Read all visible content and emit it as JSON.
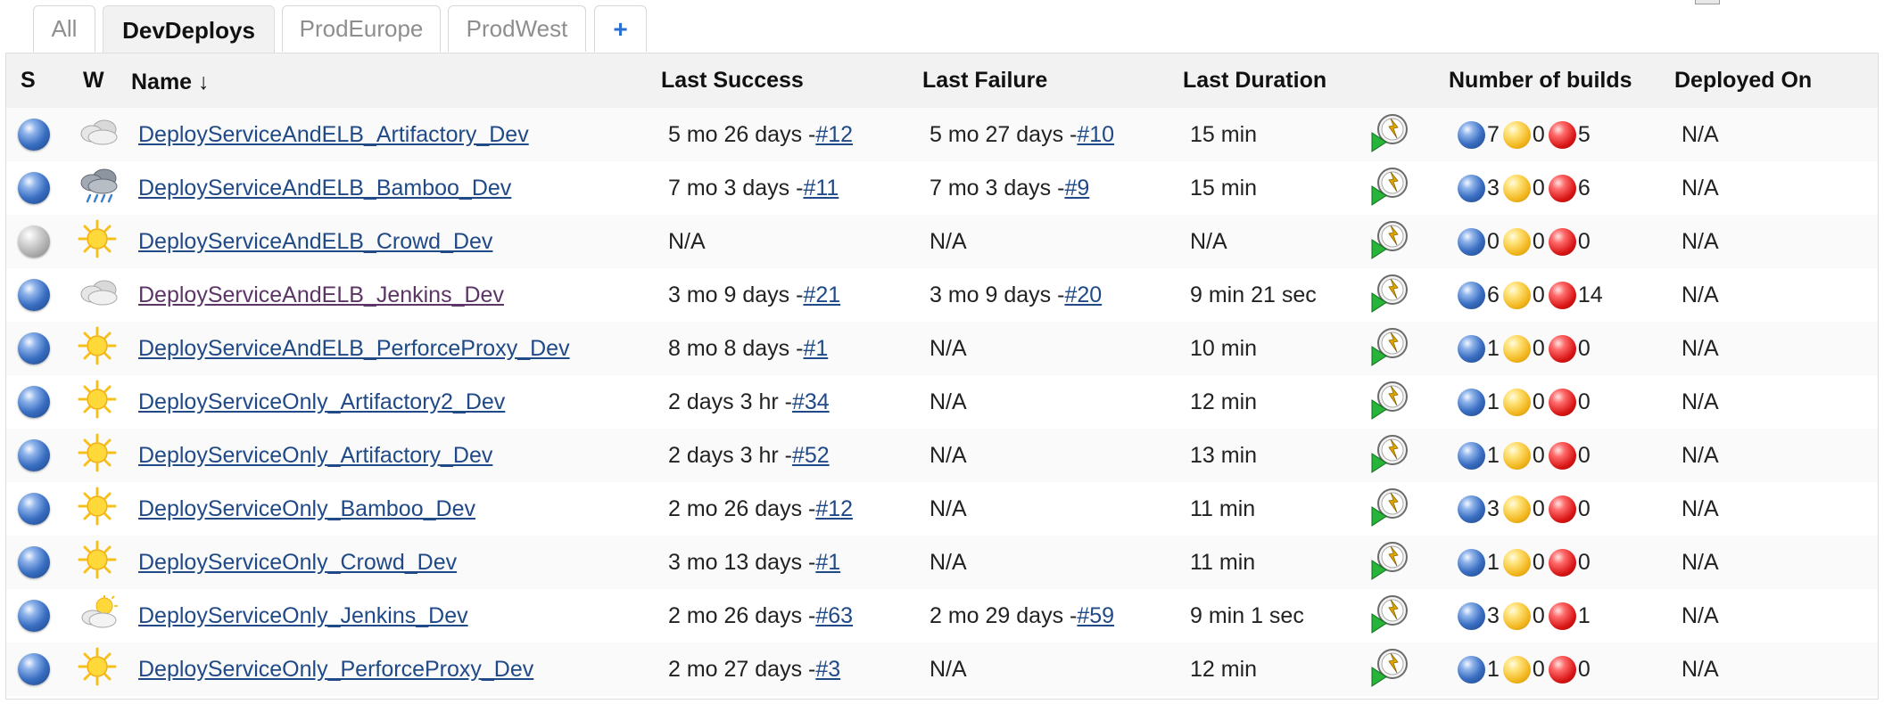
{
  "tabs": [
    {
      "label": "All"
    },
    {
      "label": "DevDeploys",
      "active": true
    },
    {
      "label": "ProdEurope"
    },
    {
      "label": "ProdWest"
    },
    {
      "label": "+"
    }
  ],
  "table": {
    "headers": {
      "s": "S",
      "w": "W",
      "name": "Name ↓",
      "last_success": "Last Success",
      "last_failure": "Last Failure",
      "last_duration": "Last Duration",
      "builds": "Number of builds",
      "deployed": "Deployed On"
    },
    "rows": [
      {
        "status": "blue-ball",
        "weather": "cloudy-icon",
        "name": "DeployServiceAndELB_Artifactory_Dev",
        "ls_text": "5 mo 26 days - ",
        "ls_build": "#12",
        "lf_text": "5 mo 27 days - ",
        "lf_build": "#10",
        "duration": "15 min",
        "success": "7",
        "unstable": "0",
        "failed": "5",
        "deployed": "N/A"
      },
      {
        "status": "blue-ball",
        "weather": "rain-icon",
        "name": "DeployServiceAndELB_Bamboo_Dev",
        "ls_text": "7 mo 3 days - ",
        "ls_build": "#11",
        "lf_text": "7 mo 3 days - ",
        "lf_build": "#9",
        "duration": "15 min",
        "success": "3",
        "unstable": "0",
        "failed": "6",
        "deployed": "N/A"
      },
      {
        "status": "grey-ball",
        "weather": "sun-icon",
        "name": "DeployServiceAndELB_Crowd_Dev",
        "ls_text": "N/A",
        "ls_build": "",
        "lf_text": "N/A",
        "lf_build": "",
        "duration": "N/A",
        "success": "0",
        "unstable": "0",
        "failed": "0",
        "deployed": "N/A"
      },
      {
        "status": "blue-ball",
        "weather": "cloudy-icon",
        "name": "DeployServiceAndELB_Jenkins_Dev",
        "visited": true,
        "ls_text": "3 mo 9 days - ",
        "ls_build": "#21",
        "lf_text": "3 mo 9 days - ",
        "lf_build": "#20",
        "duration": "9 min 21 sec",
        "success": "6",
        "unstable": "0",
        "failed": "14",
        "deployed": "N/A"
      },
      {
        "status": "blue-ball",
        "weather": "sun-icon",
        "name": "DeployServiceAndELB_PerforceProxy_Dev",
        "ls_text": "8 mo 8 days - ",
        "ls_build": "#1",
        "lf_text": "N/A",
        "lf_build": "",
        "duration": "10 min",
        "success": "1",
        "unstable": "0",
        "failed": "0",
        "deployed": "N/A"
      },
      {
        "status": "blue-ball",
        "weather": "sun-icon",
        "name": "DeployServiceOnly_Artifactory2_Dev",
        "ls_text": "2 days 3 hr - ",
        "ls_build": "#34",
        "lf_text": "N/A",
        "lf_build": "",
        "duration": "12 min",
        "success": "1",
        "unstable": "0",
        "failed": "0",
        "deployed": "N/A"
      },
      {
        "status": "blue-ball",
        "weather": "sun-icon",
        "name": "DeployServiceOnly_Artifactory_Dev",
        "ls_text": "2 days 3 hr - ",
        "ls_build": "#52",
        "lf_text": "N/A",
        "lf_build": "",
        "duration": "13 min",
        "success": "1",
        "unstable": "0",
        "failed": "0",
        "deployed": "N/A"
      },
      {
        "status": "blue-ball",
        "weather": "sun-icon",
        "name": "DeployServiceOnly_Bamboo_Dev",
        "ls_text": "2 mo 26 days - ",
        "ls_build": "#12",
        "lf_text": "N/A",
        "lf_build": "",
        "duration": "11 min",
        "success": "3",
        "unstable": "0",
        "failed": "0",
        "deployed": "N/A"
      },
      {
        "status": "blue-ball",
        "weather": "sun-icon",
        "name": "DeployServiceOnly_Crowd_Dev",
        "ls_text": "3 mo 13 days - ",
        "ls_build": "#1",
        "lf_text": "N/A",
        "lf_build": "",
        "duration": "11 min",
        "success": "1",
        "unstable": "0",
        "failed": "0",
        "deployed": "N/A"
      },
      {
        "status": "blue-ball",
        "weather": "partly-sunny-icon",
        "name": "DeployServiceOnly_Jenkins_Dev",
        "ls_text": "2 mo 26 days - ",
        "ls_build": "#63",
        "lf_text": "2 mo 29 days - ",
        "lf_build": "#59",
        "duration": "9 min 1 sec",
        "success": "3",
        "unstable": "0",
        "failed": "1",
        "deployed": "N/A"
      },
      {
        "status": "blue-ball",
        "weather": "sun-icon",
        "name": "DeployServiceOnly_PerforceProxy_Dev",
        "ls_text": "2 mo 27 days - ",
        "ls_build": "#3",
        "lf_text": "N/A",
        "lf_build": "",
        "duration": "12 min",
        "success": "1",
        "unstable": "0",
        "failed": "0",
        "deployed": "N/A"
      }
    ]
  },
  "colors": {
    "link": "#204a87",
    "visited_link": "#5c3566",
    "header_bg": "#f2f2f2",
    "tab_plus": "#2b6fd6"
  }
}
